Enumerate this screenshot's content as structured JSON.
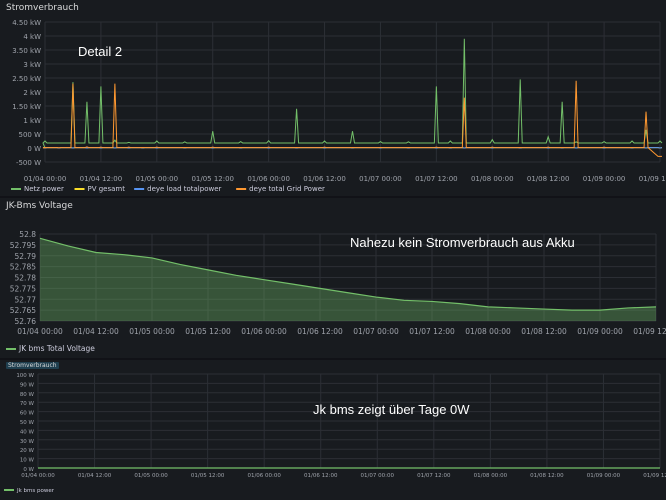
{
  "panels": [
    {
      "title": "Stromverbrauch",
      "annotation": "Detail 2",
      "chart_data": {
        "type": "line",
        "title": "Stromverbrauch",
        "x_ticks": [
          "01/04 00:00",
          "01/04 12:00",
          "01/05 00:00",
          "01/05 12:00",
          "01/06 00:00",
          "01/06 12:00",
          "01/07 00:00",
          "01/07 12:00",
          "01/08 00:00",
          "01/08 12:00",
          "01/09 00:00",
          "01/09 12:00"
        ],
        "y_ticks": [
          "-500 W",
          "0 W",
          "500 W",
          "1 kW",
          "1.50 kW",
          "2 kW",
          "2.50 kW",
          "3 kW",
          "3.50 kW",
          "4 kW",
          "4.50 kW"
        ],
        "ylim": [
          -500,
          4500
        ],
        "grid": true,
        "legend_position": "bottom-left",
        "x": [
          "01/04 00:00",
          "01/04 03:00",
          "01/04 06:00",
          "01/04 09:00",
          "01/04 12:00",
          "01/04 15:00",
          "01/04 18:00",
          "01/04 21:00",
          "01/05 00:00",
          "01/05 06:00",
          "01/05 12:00",
          "01/05 18:00",
          "01/06 00:00",
          "01/06 06:00",
          "01/06 12:00",
          "01/06 18:00",
          "01/07 00:00",
          "01/07 06:00",
          "01/07 12:00",
          "01/07 15:00",
          "01/07 18:00",
          "01/08 00:00",
          "01/08 06:00",
          "01/08 12:00",
          "01/08 15:00",
          "01/08 18:00",
          "01/09 00:00",
          "01/09 06:00",
          "01/09 09:00",
          "01/09 12:00"
        ],
        "series": [
          {
            "name": "Netz power",
            "color": "#73bf69",
            "values": [
              250,
              180,
              2350,
              1650,
              2200,
              280,
              200,
              180,
              250,
              220,
              600,
              230,
              260,
              1400,
              250,
              600,
              230,
              220,
              2200,
              250,
              3900,
              300,
              2450,
              400,
              1650,
              220,
              230,
              250,
              650,
              250
            ]
          },
          {
            "name": "PV gesamt",
            "color": "#fade2a",
            "values": [
              0,
              0,
              0,
              0,
              0,
              0,
              0,
              0,
              0,
              0,
              0,
              0,
              0,
              0,
              0,
              0,
              0,
              0,
              0,
              0,
              0,
              0,
              0,
              0,
              0,
              0,
              0,
              0,
              0,
              0
            ]
          },
          {
            "name": "deye load totalpower",
            "color": "#5794f2",
            "values": [
              0,
              0,
              0,
              0,
              0,
              0,
              0,
              0,
              0,
              0,
              0,
              0,
              0,
              0,
              0,
              0,
              0,
              0,
              0,
              0,
              0,
              0,
              0,
              0,
              0,
              0,
              0,
              0,
              0,
              0
            ]
          },
          {
            "name": "deye total Grid Power",
            "color": "#ff9830",
            "values": [
              20,
              10,
              2300,
              40,
              30,
              2300,
              30,
              20,
              30,
              20,
              30,
              20,
              30,
              20,
              30,
              20,
              20,
              20,
              30,
              20,
              1800,
              30,
              20,
              30,
              20,
              2400,
              30,
              20,
              1300,
              -300
            ]
          }
        ]
      }
    },
    {
      "title": "JK-Bms Voltage",
      "annotation": "Nahezu kein Stromverbrauch aus Akku",
      "chart_data": {
        "type": "area",
        "title": "JK-Bms Voltage",
        "x_ticks": [
          "01/04 00:00",
          "01/04 12:00",
          "01/05 00:00",
          "01/05 12:00",
          "01/06 00:00",
          "01/06 12:00",
          "01/07 00:00",
          "01/07 12:00",
          "01/08 00:00",
          "01/08 12:00",
          "01/09 00:00",
          "01/09 12:00"
        ],
        "y_ticks": [
          "52.76",
          "52.765",
          "52.77",
          "52.775",
          "52.78",
          "52.785",
          "52.79",
          "52.795",
          "52.8"
        ],
        "ylim": [
          52.76,
          52.8
        ],
        "grid": true,
        "legend_position": "bottom-left",
        "x": [
          "01/04 00:00",
          "01/04 06:00",
          "01/04 12:00",
          "01/04 18:00",
          "01/05 00:00",
          "01/05 06:00",
          "01/05 12:00",
          "01/05 18:00",
          "01/06 00:00",
          "01/06 06:00",
          "01/06 12:00",
          "01/06 18:00",
          "01/07 00:00",
          "01/07 06:00",
          "01/07 12:00",
          "01/07 18:00",
          "01/08 00:00",
          "01/08 06:00",
          "01/08 12:00",
          "01/08 18:00",
          "01/09 00:00",
          "01/09 06:00",
          "01/09 12:00"
        ],
        "series": [
          {
            "name": "JK bms Total Voltage",
            "color": "#73bf69",
            "values": [
              52.798,
              52.7945,
              52.7915,
              52.7905,
              52.789,
              52.786,
              52.7835,
              52.781,
              52.779,
              52.777,
              52.775,
              52.773,
              52.771,
              52.7695,
              52.769,
              52.768,
              52.7665,
              52.766,
              52.7655,
              52.765,
              52.765,
              52.766,
              52.7665
            ]
          }
        ]
      }
    },
    {
      "title": "Stromverbrauch",
      "annotation": "Jk bms zeigt über Tage 0W",
      "chart_data": {
        "type": "line",
        "title": "Stromverbrauch",
        "x_ticks": [
          "01/04 00:00",
          "01/04 12:00",
          "01/05 00:00",
          "01/05 12:00",
          "01/06 00:00",
          "01/06 12:00",
          "01/07 00:00",
          "01/07 12:00",
          "01/08 00:00",
          "01/08 12:00",
          "01/09 00:00",
          "01/09 12:00"
        ],
        "y_ticks": [
          "0 W",
          "10 W",
          "20 W",
          "30 W",
          "40 W",
          "50 W",
          "60 W",
          "70 W",
          "80 W",
          "90 W",
          "100 W"
        ],
        "ylim": [
          0,
          100
        ],
        "grid": true,
        "legend_position": "bottom-left",
        "x": [
          "01/04 00:00",
          "01/09 12:00"
        ],
        "series": [
          {
            "name": "Jk bms power",
            "color": "#73bf69",
            "values": [
              0,
              0
            ]
          }
        ]
      }
    }
  ]
}
